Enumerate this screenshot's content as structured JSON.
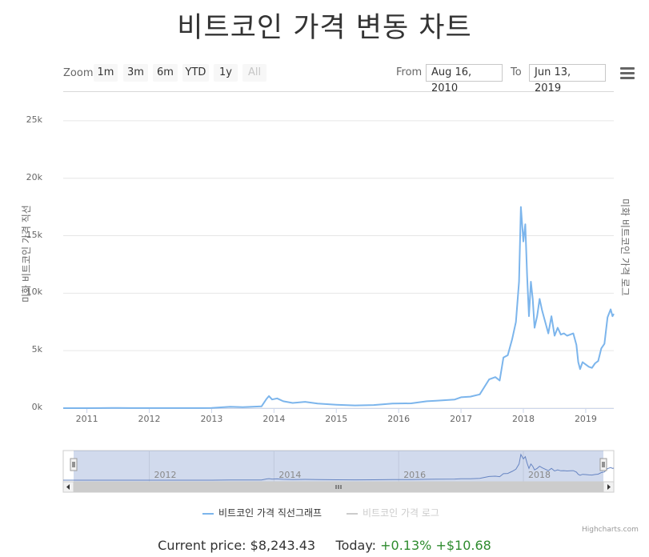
{
  "page": {
    "title": "비트코인 가격 변동 차트",
    "credits": "Highcharts.com"
  },
  "controls": {
    "zoom_label": "Zoom",
    "zoom_buttons": [
      "1m",
      "3m",
      "6m",
      "YTD",
      "1y",
      "All"
    ],
    "disabled_button": "All",
    "from_label": "From",
    "from_value": "Aug 16, 2010",
    "to_label": "To",
    "to_value": "Jun 13, 2019"
  },
  "footer": {
    "price_label": "Current price:",
    "price_value": "$8,243.43",
    "today_label": "Today:",
    "today_percent": "+0.13%",
    "today_change": "+$10.68"
  },
  "colors": {
    "series": "#7cb5ec",
    "series_inactive": "#cccccc",
    "grid": "#e6e6e6",
    "navigator_mask": "rgba(102,133,194,0.3)",
    "positive": "#2e8b2e"
  },
  "chart_data": {
    "type": "line",
    "title": "비트코인 가격 변동 차트",
    "ylabel_left": "미화 비트코인 가격 직선",
    "ylabel_right": "미화 비트코인 가격 로그",
    "ylim": [
      0,
      27500
    ],
    "xlim": [
      2010.62,
      2019.45
    ],
    "y_ticks": [
      {
        "label": "0k",
        "value": 0
      },
      {
        "label": "5k",
        "value": 5000
      },
      {
        "label": "10k",
        "value": 10000
      },
      {
        "label": "15k",
        "value": 15000
      },
      {
        "label": "20k",
        "value": 20000
      },
      {
        "label": "25k",
        "value": 25000
      }
    ],
    "x_ticks": [
      "2011",
      "2012",
      "2013",
      "2014",
      "2015",
      "2016",
      "2017",
      "2018",
      "2019"
    ],
    "navigator_x_ticks": [
      "2012",
      "2014",
      "2016",
      "2018"
    ],
    "grid": true,
    "legend_position": "bottom-center",
    "series": [
      {
        "name": "비트코인 가격 직선그래프",
        "visible": true,
        "x": [
          2010.62,
          2011.0,
          2011.4,
          2011.5,
          2011.7,
          2012.0,
          2012.5,
          2013.0,
          2013.3,
          2013.5,
          2013.8,
          2013.88,
          2013.92,
          2013.97,
          2014.05,
          2014.15,
          2014.3,
          2014.5,
          2014.7,
          2015.0,
          2015.3,
          2015.6,
          2015.9,
          2016.2,
          2016.45,
          2016.6,
          2016.9,
          2017.0,
          2017.15,
          2017.3,
          2017.45,
          2017.55,
          2017.62,
          2017.68,
          2017.75,
          2017.82,
          2017.88,
          2017.93,
          2017.96,
          2018.0,
          2018.03,
          2018.06,
          2018.09,
          2018.12,
          2018.15,
          2018.18,
          2018.22,
          2018.26,
          2018.3,
          2018.35,
          2018.4,
          2018.45,
          2018.5,
          2018.55,
          2018.6,
          2018.65,
          2018.7,
          2018.75,
          2018.8,
          2018.85,
          2018.88,
          2018.91,
          2018.95,
          2019.0,
          2019.05,
          2019.1,
          2019.15,
          2019.2,
          2019.25,
          2019.3,
          2019.35,
          2019.4,
          2019.43,
          2019.45
        ],
        "values": [
          0,
          0,
          20,
          15,
          5,
          6,
          8,
          15,
          120,
          90,
          150,
          800,
          1050,
          750,
          850,
          600,
          450,
          550,
          400,
          300,
          240,
          270,
          400,
          420,
          600,
          650,
          750,
          950,
          1000,
          1200,
          2500,
          2700,
          2400,
          4400,
          4600,
          6000,
          7500,
          11000,
          17500,
          14500,
          16000,
          11500,
          8000,
          11000,
          9500,
          7000,
          8000,
          9500,
          8500,
          7500,
          6500,
          8000,
          6300,
          7000,
          6400,
          6500,
          6300,
          6400,
          6500,
          5500,
          4000,
          3400,
          4000,
          3800,
          3600,
          3500,
          3900,
          4100,
          5200,
          5600,
          7900,
          8600,
          8000,
          8200
        ]
      },
      {
        "name": "비트코인 가격 로그",
        "visible": false
      }
    ]
  }
}
